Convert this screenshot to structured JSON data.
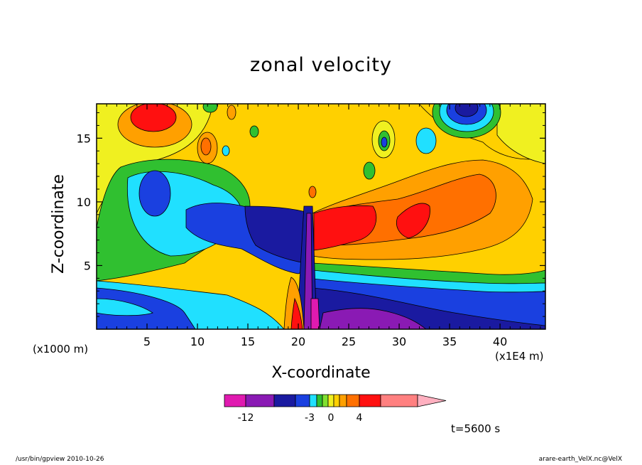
{
  "chart_data": {
    "type": "heatmap",
    "subtype": "filled-contour",
    "title": "zonal velocity",
    "xlabel": "X-coordinate",
    "ylabel": "Z-coordinate",
    "x_unit_label": "(x1000 m)",
    "x_scale_label": "(x1E4 m)",
    "x_range": [
      0,
      44.5
    ],
    "y_range": [
      0,
      17.7
    ],
    "x_ticks": [
      5,
      10,
      15,
      20,
      25,
      30,
      35,
      40
    ],
    "y_ticks": [
      5,
      10,
      15
    ],
    "grid": false,
    "colorbar": {
      "orientation": "horizontal",
      "position": "bottom",
      "colors": [
        "#e01ab0",
        "#8a1ab4",
        "#1a1aa0",
        "#1a40e0",
        "#20e0ff",
        "#30c030",
        "#80e030",
        "#f0f020",
        "#ffd000",
        "#ffa000",
        "#ff7000",
        "#ff1010",
        "#ff8080",
        "#ffb0c0"
      ],
      "tick_labels": [
        "-12",
        "-3",
        "0",
        "4"
      ]
    },
    "features": [
      {
        "label": "upper-layer positive maximum",
        "x": 6,
        "z": 17.5,
        "value_band": "strong positive"
      },
      {
        "label": "upper-layer negative minimum",
        "x": 37,
        "z": 17.5,
        "value_band": "strong negative"
      },
      {
        "label": "westward jet left of mountain",
        "x": 13,
        "z": 8,
        "value_band": "negative"
      },
      {
        "label": "eastward jet right of mountain",
        "x": 26,
        "z": 7.5,
        "value_band": "positive"
      },
      {
        "label": "lower-layer return flow",
        "x": 35,
        "z": 2,
        "value_band": "negative"
      }
    ]
  },
  "annotations": {
    "time": "t=5600 s",
    "footer_left": "/usr/bin/gpview   2010-10-26",
    "footer_right": "arare-earth_VelX.nc@VelX"
  }
}
